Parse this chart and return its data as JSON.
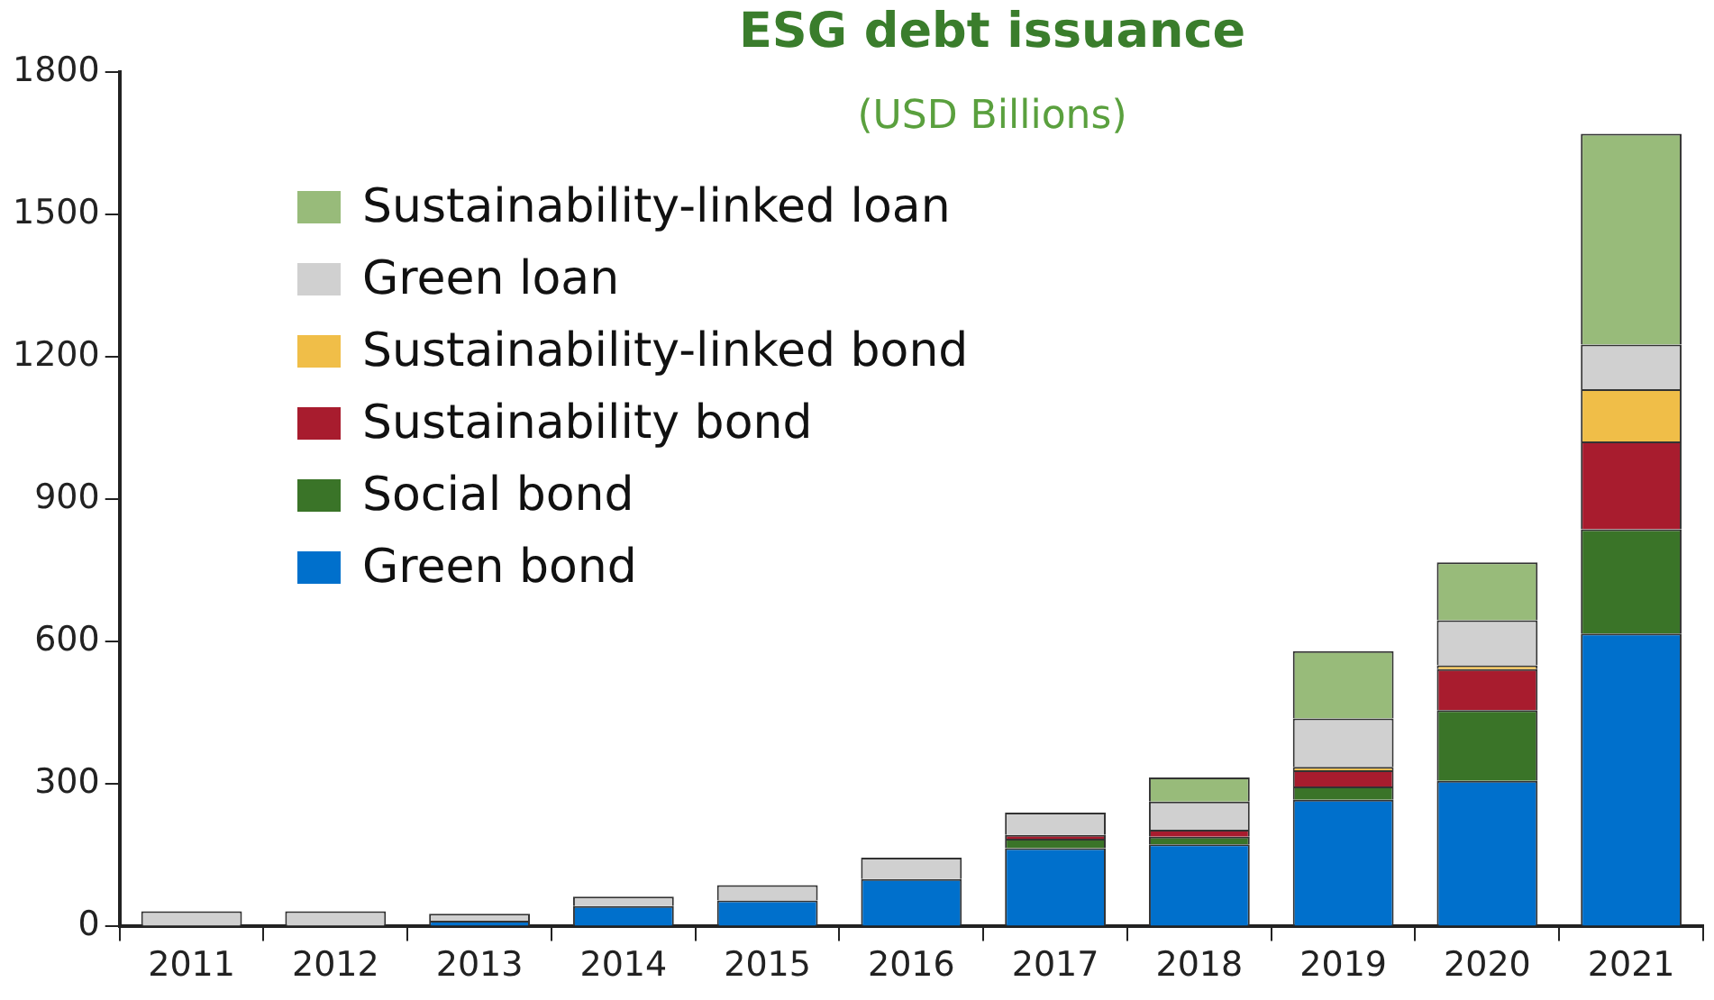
{
  "chart_data": {
    "type": "bar",
    "title": "ESG debt issuance",
    "subtitle": "(USD Billions)",
    "stacked": true,
    "legend": "top left",
    "grid": false,
    "categories": [
      "2011",
      "2012",
      "2013",
      "2014",
      "2015",
      "2016",
      "2017",
      "2018",
      "2019",
      "2020",
      "2021"
    ],
    "ylim": [
      0,
      1800
    ],
    "yticks": [
      0,
      300,
      600,
      900,
      1200,
      1500,
      1800
    ],
    "series": [
      {
        "name": "Green bond",
        "color": "#0070cc",
        "values": [
          null,
          null,
          12,
          43,
          55,
          100,
          165,
          173,
          267,
          307,
          617
        ]
      },
      {
        "name": "Social bond",
        "color": "#3a7428",
        "values": [
          null,
          null,
          null,
          null,
          null,
          null,
          20,
          16,
          28,
          149,
          220
        ]
      },
      {
        "name": "Sustainability bond",
        "color": "#a81c2e",
        "values": [
          null,
          null,
          null,
          null,
          null,
          null,
          8,
          15,
          34,
          86,
          185
        ]
      },
      {
        "name": "Sustainability-linked bond",
        "color": "#f0be48",
        "values": [
          null,
          null,
          null,
          null,
          null,
          null,
          null,
          null,
          7,
          8,
          110
        ]
      },
      {
        "name": "Green loan",
        "color": "#d0d0d0",
        "values": [
          32,
          32,
          15,
          20,
          32,
          45,
          47,
          59,
          102,
          95,
          94
        ]
      },
      {
        "name": "Sustainability-linked loan",
        "color": "#98bb7a",
        "values": [
          null,
          null,
          null,
          null,
          null,
          null,
          null,
          51,
          142,
          122,
          444
        ]
      }
    ]
  }
}
